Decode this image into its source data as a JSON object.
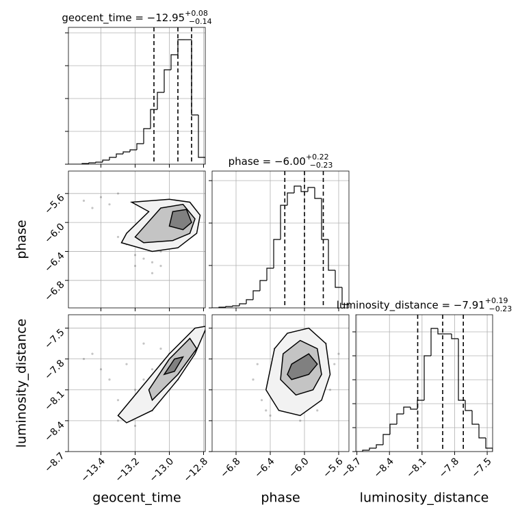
{
  "chart_data": [
    {
      "type": "histogram",
      "title": "geocent_time = −12.95",
      "title_sup": "+0.08",
      "title_sub": "−0.14",
      "bins": [
        -13.59,
        -13.55,
        -13.51,
        -13.47,
        -13.43,
        -13.39,
        -13.35,
        -13.31,
        -13.27,
        -13.23,
        -13.19,
        -13.15,
        -13.11,
        -13.07,
        -13.03,
        -12.99,
        -12.95,
        -12.91,
        -12.87,
        -12.83,
        -12.79
      ],
      "values": [
        0,
        0,
        1,
        2,
        3,
        6,
        10,
        15,
        18,
        21,
        30,
        52,
        80,
        105,
        138,
        160,
        182,
        182,
        72,
        10
      ],
      "quantiles": [
        -13.09,
        -12.95,
        -12.87
      ],
      "color": "#000000",
      "xlim": [
        -13.59,
        -12.79
      ],
      "xticks": [
        -13.4,
        -13.2,
        -13.0,
        -12.8
      ],
      "ylim": [
        0,
        200
      ],
      "yticks": [
        0,
        48,
        96,
        144,
        192
      ],
      "grid": true
    },
    {
      "type": "contour",
      "color": "#000000",
      "point_color": "#555555",
      "xlim": [
        -13.59,
        -12.79
      ],
      "xticks": [
        -13.4,
        -13.2,
        -13.0,
        -12.8
      ],
      "ylim": [
        -7.18,
        -5.29
      ],
      "yticks": [
        {
          "value": -6.8,
          "label": "−6.8"
        },
        {
          "value": -6.4,
          "label": "−6.4"
        },
        {
          "value": -6.0,
          "label": "−6.0"
        },
        {
          "value": -5.6,
          "label": "−5.6"
        }
      ],
      "ylabel": "phase",
      "grid": true,
      "points": {
        "x": [
          -13.5,
          -13.4,
          -13.35,
          -13.3,
          -13.25,
          -13.2,
          -13.15,
          -13.1,
          -13.05,
          -13.0,
          -12.98,
          -12.95,
          -12.92,
          -12.9,
          -12.88,
          -12.85,
          -13.2,
          -13.1,
          -13.0,
          -12.95,
          -13.3,
          -13.45,
          -13.15,
          -13.05,
          -12.9
        ],
        "y": [
          -5.7,
          -5.65,
          -5.75,
          -5.6,
          -6.3,
          -6.45,
          -6.5,
          -6.55,
          -6.4,
          -6.1,
          -5.95,
          -5.9,
          -6.0,
          -5.85,
          -6.05,
          -6.15,
          -6.6,
          -6.7,
          -6.35,
          -5.8,
          -6.2,
          -5.8,
          -6.35,
          -6.6,
          -5.75
        ]
      },
      "contours": [
        {
          "x": [
            -13.22,
            -13.0,
            -12.88,
            -12.82,
            -12.84,
            -12.95,
            -13.1,
            -13.28,
            -13.25,
            -13.12,
            -13.22
          ],
          "y": [
            -5.72,
            -5.68,
            -5.72,
            -5.9,
            -6.15,
            -6.35,
            -6.4,
            -6.28,
            -6.15,
            -5.85,
            -5.72
          ]
        },
        {
          "x": [
            -13.05,
            -12.92,
            -12.85,
            -12.88,
            -12.98,
            -13.15,
            -13.2,
            -13.05
          ],
          "y": [
            -5.8,
            -5.75,
            -5.95,
            -6.15,
            -6.25,
            -6.28,
            -6.2,
            -5.8
          ]
        },
        {
          "x": [
            -12.98,
            -12.9,
            -12.87,
            -12.92,
            -13.0,
            -12.98
          ],
          "y": [
            -5.85,
            -5.82,
            -6.0,
            -6.1,
            -6.05,
            -5.85
          ]
        }
      ]
    },
    {
      "type": "histogram",
      "title": "phase = −6.00",
      "title_sup": "+0.22",
      "title_sub": "−0.23",
      "bins": [
        -7.08,
        -7.0,
        -6.92,
        -6.84,
        -6.76,
        -6.68,
        -6.6,
        -6.52,
        -6.44,
        -6.36,
        -6.28,
        -6.2,
        -6.12,
        -6.04,
        -5.96,
        -5.88,
        -5.8,
        -5.72,
        -5.64,
        -5.56,
        -5.48
      ],
      "values": [
        0,
        1,
        2,
        3,
        6,
        12,
        25,
        40,
        58,
        100,
        150,
        168,
        178,
        170,
        176,
        160,
        100,
        55,
        30,
        5
      ],
      "quantiles": [
        -6.23,
        -6.0,
        -5.78
      ],
      "color": "#000000",
      "xlim": [
        -7.08,
        -5.48
      ],
      "xticks": [
        -6.8,
        -6.4,
        -6.0,
        -5.6
      ],
      "ylim": [
        0,
        200
      ],
      "yticks": [
        0,
        62,
        124,
        186
      ],
      "grid": true
    },
    {
      "type": "contour",
      "color": "#000000",
      "point_color": "#555555",
      "xlim": [
        -13.59,
        -12.79
      ],
      "xticks": [
        {
          "value": -13.4,
          "label": "−13.4"
        },
        {
          "value": -13.2,
          "label": "−13.2"
        },
        {
          "value": -13.0,
          "label": "−13.0"
        },
        {
          "value": -12.8,
          "label": "−12.8"
        }
      ],
      "ylim": [
        -8.7,
        -7.37
      ],
      "yticks": [
        {
          "value": -8.7,
          "label": "−8.7"
        },
        {
          "value": -8.4,
          "label": "−8.4"
        },
        {
          "value": -8.1,
          "label": "−8.1"
        },
        {
          "value": -7.8,
          "label": "−7.8"
        },
        {
          "value": -7.5,
          "label": "−7.5"
        }
      ],
      "xlabel": "geocent_time",
      "ylabel": "luminosity_distance",
      "grid": true,
      "points": {
        "x": [
          -13.5,
          -13.4,
          -13.3,
          -13.25,
          -13.2,
          -13.15,
          -13.1,
          -13.05,
          -13.0,
          -12.95,
          -12.9,
          -12.85,
          -12.82,
          -13.35,
          -13.2,
          -13.1,
          -13.0,
          -12.95,
          -13.45,
          -13.25,
          -13.15,
          -13.05,
          -12.9,
          -12.88,
          -13.3
        ],
        "y": [
          -7.8,
          -7.9,
          -8.4,
          -8.3,
          -8.1,
          -8.0,
          -7.9,
          -7.85,
          -7.75,
          -7.7,
          -7.6,
          -7.55,
          -7.5,
          -8.0,
          -8.45,
          -8.3,
          -8.1,
          -8.0,
          -7.75,
          -7.85,
          -7.65,
          -7.7,
          -7.8,
          -7.65,
          -8.2
        ]
      },
      "contours": [
        {
          "x": [
            -13.3,
            -13.15,
            -13.0,
            -12.85,
            -12.78,
            -12.85,
            -12.95,
            -13.1,
            -13.25,
            -13.3
          ],
          "y": [
            -8.35,
            -8.05,
            -7.75,
            -7.5,
            -7.48,
            -7.75,
            -8.0,
            -8.3,
            -8.42,
            -8.35
          ]
        },
        {
          "x": [
            -13.12,
            -13.0,
            -12.88,
            -12.84,
            -12.95,
            -13.1,
            -13.12
          ],
          "y": [
            -8.1,
            -7.8,
            -7.6,
            -7.7,
            -7.95,
            -8.2,
            -8.1
          ]
        },
        {
          "x": [
            -13.03,
            -12.97,
            -12.92,
            -12.97,
            -13.03
          ],
          "y": [
            -7.95,
            -7.8,
            -7.78,
            -7.92,
            -7.95
          ]
        }
      ]
    },
    {
      "type": "contour",
      "color": "#000000",
      "point_color": "#555555",
      "xlim": [
        -7.08,
        -5.48
      ],
      "xticks": [
        {
          "value": -6.8,
          "label": "−6.8"
        },
        {
          "value": -6.4,
          "label": "−6.4"
        },
        {
          "value": -6.0,
          "label": "−6.0"
        },
        {
          "value": -5.6,
          "label": "−5.6"
        }
      ],
      "ylim": [
        -8.7,
        -7.37
      ],
      "yticks": [
        -8.7,
        -8.4,
        -8.1,
        -7.8,
        -7.5
      ],
      "xlabel": "phase",
      "grid": true,
      "points": {
        "x": [
          -6.6,
          -6.5,
          -6.4,
          -6.35,
          -6.3,
          -6.2,
          -6.1,
          -6.05,
          -6.0,
          -5.95,
          -5.9,
          -5.85,
          -5.8,
          -5.75,
          -5.7,
          -5.65,
          -6.45,
          -6.25,
          -6.15,
          -5.95,
          -5.85,
          -6.55,
          -5.6,
          -6.0,
          -6.3
        ],
        "y": [
          -8.0,
          -8.2,
          -8.35,
          -7.7,
          -8.05,
          -7.6,
          -7.85,
          -8.4,
          -7.9,
          -7.55,
          -7.8,
          -8.3,
          -7.95,
          -7.65,
          -8.1,
          -7.85,
          -8.3,
          -7.9,
          -8.15,
          -8.0,
          -7.6,
          -7.85,
          -7.75,
          -8.25,
          -7.95
        ]
      },
      "contours": [
        {
          "x": [
            -6.35,
            -6.2,
            -5.95,
            -5.75,
            -5.7,
            -5.8,
            -6.05,
            -6.3,
            -6.45,
            -6.35
          ],
          "y": [
            -7.7,
            -7.55,
            -7.5,
            -7.65,
            -7.95,
            -8.2,
            -8.35,
            -8.3,
            -8.1,
            -7.7
          ]
        },
        {
          "x": [
            -6.25,
            -6.05,
            -5.85,
            -5.8,
            -5.9,
            -6.1,
            -6.28,
            -6.25
          ],
          "y": [
            -7.75,
            -7.62,
            -7.7,
            -7.95,
            -8.1,
            -8.15,
            -8.0,
            -7.75
          ]
        },
        {
          "x": [
            -6.15,
            -5.95,
            -5.85,
            -5.95,
            -6.15,
            -6.2,
            -6.15
          ],
          "y": [
            -7.85,
            -7.75,
            -7.85,
            -7.95,
            -8.0,
            -7.95,
            -7.85
          ]
        }
      ]
    },
    {
      "type": "histogram",
      "title": "luminosity_distance = −7.91",
      "title_sup": "+0.19",
      "title_sub": "−0.23",
      "bins": [
        -8.71,
        -8.647,
        -8.584,
        -8.521,
        -8.458,
        -8.395,
        -8.332,
        -8.269,
        -8.206,
        -8.143,
        -8.08,
        -8.017,
        -7.954,
        -7.891,
        -7.828,
        -7.765,
        -7.702,
        -7.639,
        -7.576,
        -7.513,
        -7.45
      ],
      "values": [
        0,
        2,
        5,
        10,
        25,
        40,
        55,
        65,
        62,
        75,
        140,
        180,
        172,
        172,
        165,
        75,
        60,
        40,
        20,
        5
      ],
      "quantiles": [
        -8.14,
        -7.91,
        -7.72
      ],
      "color": "#000000",
      "xlim": [
        -8.71,
        -7.45
      ],
      "xticks": [
        {
          "value": -8.7,
          "label": "−8.7"
        },
        {
          "value": -8.4,
          "label": "−8.4"
        },
        {
          "value": -8.1,
          "label": "−8.1"
        },
        {
          "value": -7.8,
          "label": "−7.8"
        },
        {
          "value": -7.5,
          "label": "−7.5"
        }
      ],
      "xlabel": "luminosity_distance",
      "ylim": [
        0,
        200
      ],
      "yticks": [
        0,
        35,
        70,
        105,
        140,
        175
      ],
      "grid": true
    }
  ]
}
